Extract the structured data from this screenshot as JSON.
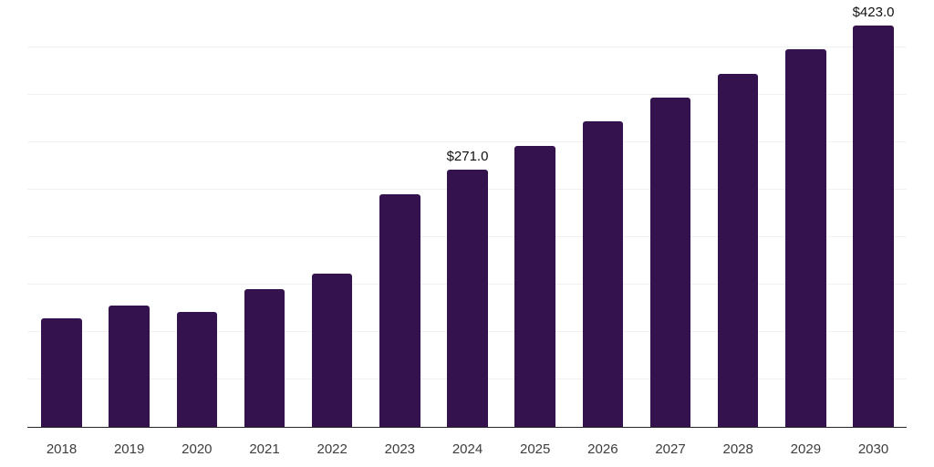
{
  "chart_data": {
    "type": "bar",
    "title": "",
    "xlabel": "",
    "ylabel": "",
    "categories": [
      "2018",
      "2019",
      "2020",
      "2021",
      "2022",
      "2023",
      "2024",
      "2025",
      "2026",
      "2027",
      "2028",
      "2029",
      "2030"
    ],
    "values": [
      114,
      128,
      121,
      145,
      162,
      245,
      271.0,
      296.3,
      321.7,
      347.0,
      372.3,
      397.7,
      423.0
    ],
    "point_labels": [
      {
        "index": 6,
        "text": "$271.0"
      },
      {
        "index": 12,
        "text": "$423.0"
      }
    ],
    "ylim": [
      0,
      450
    ],
    "gridline_interval": 50,
    "grid": true,
    "legend": false,
    "bar_color": "#34124E",
    "axis_line_color": "#262626",
    "gridline_color": "#f1f1f3",
    "tick_label_color": "#3d3d3d",
    "value_label_color": "#111111",
    "background_color": "#ffffff"
  }
}
